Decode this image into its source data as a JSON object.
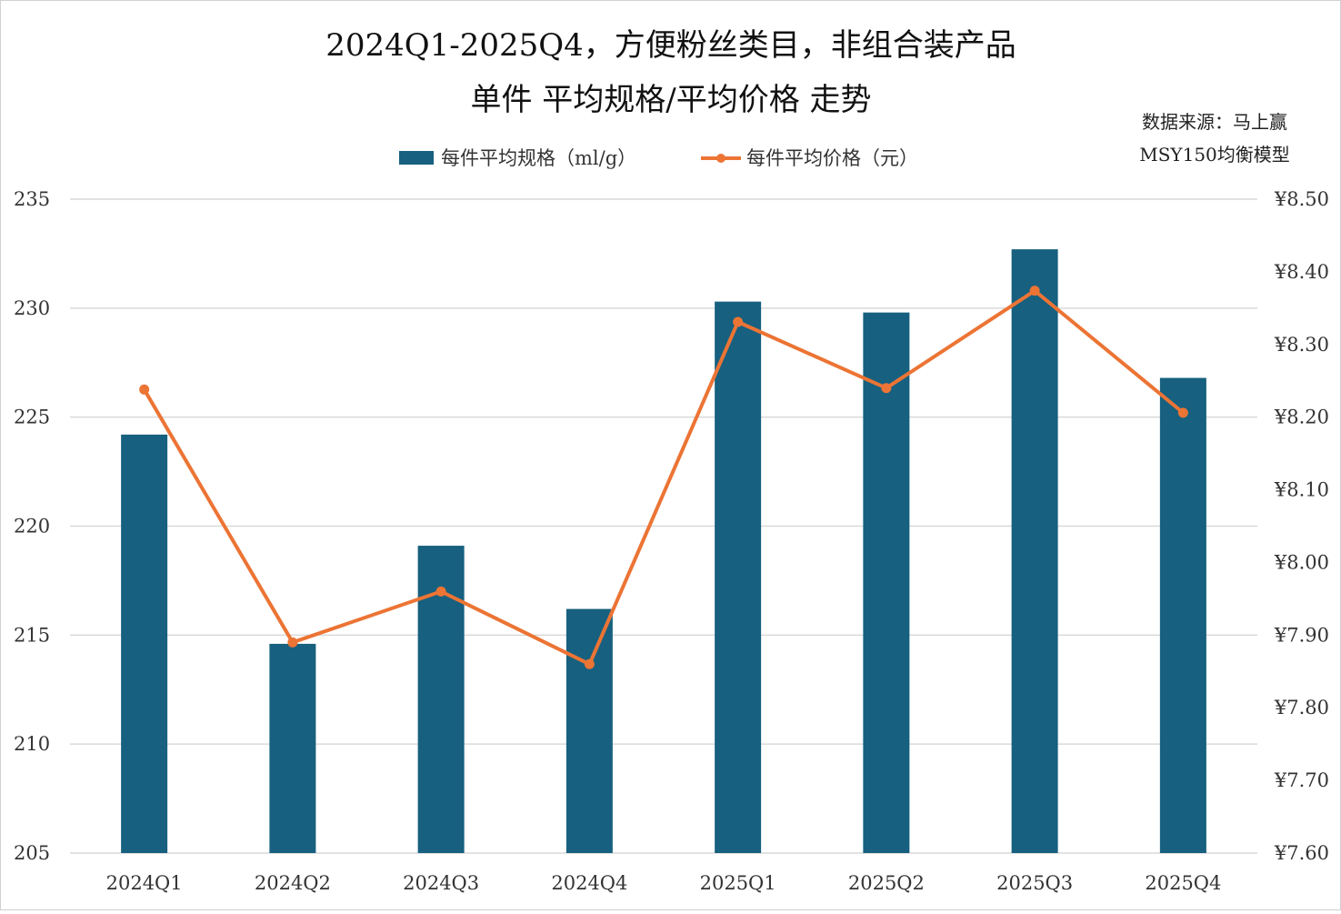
{
  "chart_data": {
    "type": "bar",
    "title_line1": "2024Q1-2025Q4，方便粉丝类目，非组合装产品",
    "title_line2": "单件 平均规格/平均价格 走势",
    "source_line1": "数据来源：马上赢",
    "source_line2": "MSY150均衡模型",
    "categories": [
      "2024Q1",
      "2024Q2",
      "2024Q3",
      "2024Q4",
      "2025Q1",
      "2025Q2",
      "2025Q3",
      "2025Q4"
    ],
    "series": [
      {
        "name": "每件平均规格（ml/g）",
        "type": "bar",
        "axis": "left",
        "color": "#17607f",
        "values": [
          224.2,
          214.6,
          219.1,
          216.2,
          230.3,
          229.8,
          232.7,
          226.8
        ]
      },
      {
        "name": "每件平均价格（元）",
        "type": "line",
        "axis": "right",
        "color": "#ec7434",
        "values": [
          8.238,
          7.89,
          7.96,
          7.86,
          8.331,
          8.24,
          8.374,
          8.206
        ]
      }
    ],
    "y_left": {
      "min": 205,
      "max": 235,
      "ticks": [
        "205",
        "210",
        "215",
        "220",
        "225",
        "230",
        "235"
      ]
    },
    "y_right": {
      "min": 7.6,
      "max": 8.5,
      "ticks": [
        "¥7.60",
        "¥7.70",
        "¥7.80",
        "¥7.90",
        "¥8.00",
        "¥8.10",
        "¥8.20",
        "¥8.30",
        "¥8.40",
        "¥8.50"
      ]
    },
    "grid": true,
    "legend_position": "top"
  }
}
